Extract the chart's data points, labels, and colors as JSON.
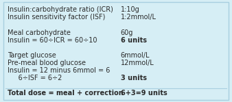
{
  "background_color": "#d6eef5",
  "border_color": "#a8cfe0",
  "rows": [
    {
      "left": "Insulin:carbohydrate ratio (ICR)",
      "right": "1:10g",
      "bold_right": false,
      "bold_left": false
    },
    {
      "left": "Insulin sensitivity factor (ISF)",
      "right": "1:2mmol/L",
      "bold_right": false,
      "bold_left": false
    },
    {
      "left": "",
      "right": "",
      "bold_right": false,
      "bold_left": false
    },
    {
      "left": "Meal carbohydrate",
      "right": "60g",
      "bold_right": false,
      "bold_left": false
    },
    {
      "left": "Insulin = 60÷ICR = 60÷10",
      "right": "6 units",
      "bold_right": true,
      "bold_left": false
    },
    {
      "left": "",
      "right": "",
      "bold_right": false,
      "bold_left": false
    },
    {
      "left": "Target glucose",
      "right": "6mmol/L",
      "bold_right": false,
      "bold_left": false
    },
    {
      "left": "Pre-meal blood glucose",
      "right": "12mmol/L",
      "bold_right": false,
      "bold_left": false
    },
    {
      "left": "Insulin = 12 minus 6mmol = 6",
      "right": "",
      "bold_right": false,
      "bold_left": false
    },
    {
      "left": "     6÷ISF = 6÷2",
      "right": "3 units",
      "bold_right": true,
      "bold_left": false
    },
    {
      "left": "",
      "right": "",
      "bold_right": false,
      "bold_left": false
    },
    {
      "left": "Total dose = meal + correction",
      "right": "6+3=9 units",
      "bold_right": true,
      "bold_left": true
    }
  ],
  "col_split": 0.52,
  "font_size": 7.0,
  "text_color": "#2a2a2a",
  "separator_before_last": true
}
